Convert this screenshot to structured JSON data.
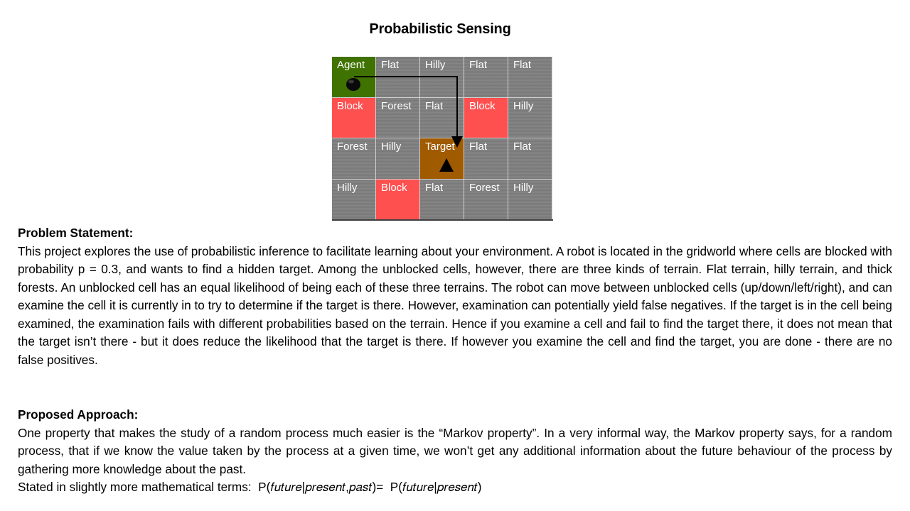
{
  "title": "Probabilistic Sensing",
  "grid": {
    "rows": [
      [
        {
          "label": "Agent",
          "type": "agent"
        },
        {
          "label": "Flat",
          "type": "terrain"
        },
        {
          "label": "Hilly",
          "type": "terrain"
        },
        {
          "label": "Flat",
          "type": "terrain"
        },
        {
          "label": "Flat",
          "type": "terrain"
        }
      ],
      [
        {
          "label": "Block",
          "type": "block"
        },
        {
          "label": "Forest",
          "type": "terrain"
        },
        {
          "label": "Flat",
          "type": "terrain"
        },
        {
          "label": "Block",
          "type": "block"
        },
        {
          "label": "Hilly",
          "type": "terrain"
        }
      ],
      [
        {
          "label": "Forest",
          "type": "terrain"
        },
        {
          "label": "Hilly",
          "type": "terrain"
        },
        {
          "label": "Target",
          "type": "target"
        },
        {
          "label": "Flat",
          "type": "terrain"
        },
        {
          "label": "Flat",
          "type": "terrain"
        }
      ],
      [
        {
          "label": "Hilly",
          "type": "terrain"
        },
        {
          "label": "Block",
          "type": "block"
        },
        {
          "label": "Flat",
          "type": "terrain"
        },
        {
          "label": "Forest",
          "type": "terrain"
        },
        {
          "label": "Hilly",
          "type": "terrain"
        }
      ]
    ],
    "colors": {
      "terrain": "#808080",
      "block": "#ff5050",
      "agent": "#3f7200",
      "target": "#a05a00"
    }
  },
  "problem": {
    "heading": "Problem Statement:",
    "body": "This project explores the use of probabilistic inference to facilitate learning about your environment. A robot is located in the gridworld where cells are blocked with probability p = 0.3, and wants to find a hidden target. Among the unblocked cells, however, there are three kinds of terrain. Flat terrain, hilly terrain, and thick forests. An unblocked cell has an equal likelihood of being each of these three terrains. The robot can move between unblocked cells (up/down/left/right), and can examine the cell it is currently in to try to determine if the target is there. However, examination can potentially yield false negatives. If the target is in the cell being examined, the examination fails with different probabilities based on the terrain. Hence if you examine a cell and fail to find the target there, it does not mean that the target isn’t there - but it does reduce the likelihood that the target is there. If however you examine the cell and find the target, you are done - there are no false positives."
  },
  "approach": {
    "heading": "Proposed Approach:",
    "body": "One property that makes the study of a random process much easier is the “Markov property”. In a very informal way, the Markov property says, for a random process, that if we know the value taken by the process at a given time, we won’t get any additional information about the future behaviour of the process by gathering more knowledge about the past.",
    "formula_intro": "Stated in slightly more mathematical terms:",
    "formula_lhs": "P(𝑓𝑢𝑡𝑢𝑟𝑒|𝑝𝑟𝑒𝑠𝑒𝑛𝑡,𝑝𝑎𝑠𝑡)=",
    "formula_rhs": "P(𝑓𝑢𝑡𝑢𝑟𝑒|𝑝𝑟𝑒𝑠𝑒𝑛𝑡)"
  }
}
